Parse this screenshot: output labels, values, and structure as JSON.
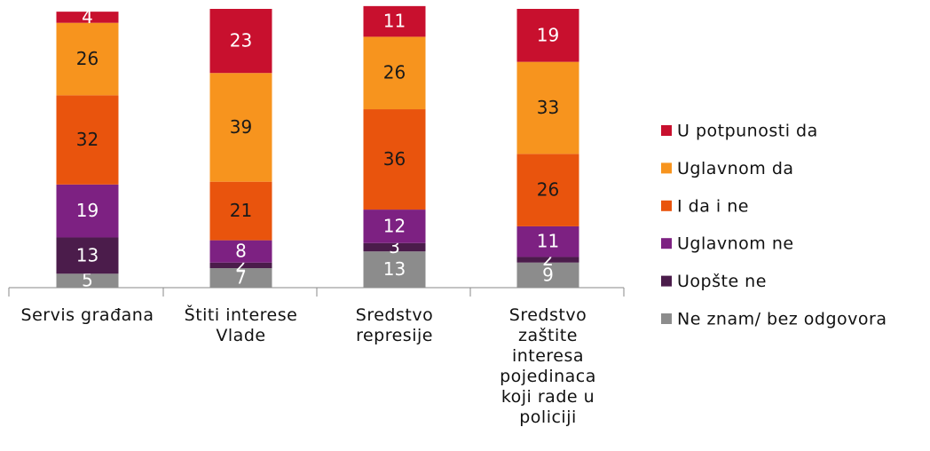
{
  "chart_data": {
    "type": "stacked_bar",
    "categories": [
      "Servis građana",
      "Štiti interese Vlade",
      "Sredstvo represije",
      "Sredstvo zaštite interesa pojedinaca koji rade u policiji"
    ],
    "ylim": [
      0,
      100
    ],
    "legend": "right",
    "series": [
      {
        "name": "Ne znam/ bez odgovora",
        "color": "#8c8c8c",
        "label_color": "#ffffff",
        "values": [
          5,
          7,
          13,
          9
        ]
      },
      {
        "name": "Uopšte ne",
        "color": "#4b1c4b",
        "label_color": "#ffffff",
        "values": [
          13,
          2,
          3,
          2
        ]
      },
      {
        "name": "Uglavnom ne",
        "color": "#7d2182",
        "label_color": "#ffffff",
        "values": [
          19,
          8,
          12,
          11
        ]
      },
      {
        "name": "I da i ne",
        "color": "#e9540d",
        "label_color": "#1a1a1a",
        "values": [
          32,
          21,
          36,
          26
        ]
      },
      {
        "name": "Uglavnom da",
        "color": "#f7941e",
        "label_color": "#1a1a1a",
        "values": [
          26,
          39,
          26,
          33
        ]
      },
      {
        "name": "U potpunosti da",
        "color": "#c8102e",
        "label_color": "#ffffff",
        "values": [
          4,
          23,
          11,
          19
        ]
      }
    ]
  }
}
